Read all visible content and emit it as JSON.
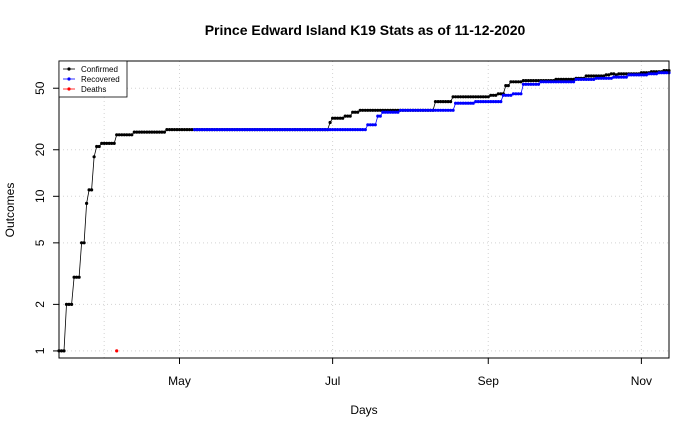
{
  "chart_data": {
    "type": "line",
    "title": "Prince Edward Island K19 Stats as of 11-12-2020",
    "xlabel": "Days",
    "ylabel": "Outcomes",
    "yscale": "log",
    "ylim": [
      0.9,
      75
    ],
    "xlim": [
      "2020-03-14",
      "2020-11-12"
    ],
    "grid": true,
    "legend_position": "top-left",
    "x_ticks": [
      {
        "label": "May",
        "date": "2020-05-01"
      },
      {
        "label": "Jul",
        "date": "2020-07-01"
      },
      {
        "label": "Sep",
        "date": "2020-09-01"
      },
      {
        "label": "Nov",
        "date": "2020-11-01"
      }
    ],
    "y_ticks": [
      1,
      2,
      5,
      10,
      20,
      50
    ],
    "series": [
      {
        "name": "Confirmed",
        "color": "#000000",
        "start": "2020-03-14",
        "end": "2020-11-12",
        "steps": [
          [
            "2020-03-14",
            1
          ],
          [
            "2020-03-17",
            2
          ],
          [
            "2020-03-20",
            3
          ],
          [
            "2020-03-23",
            5
          ],
          [
            "2020-03-25",
            9
          ],
          [
            "2020-03-26",
            11
          ],
          [
            "2020-03-28",
            18
          ],
          [
            "2020-03-29",
            21
          ],
          [
            "2020-03-31",
            22
          ],
          [
            "2020-04-06",
            25
          ],
          [
            "2020-04-13",
            26
          ],
          [
            "2020-04-26",
            27
          ],
          [
            "2020-06-30",
            30
          ],
          [
            "2020-07-01",
            32
          ],
          [
            "2020-07-06",
            33
          ],
          [
            "2020-07-09",
            35
          ],
          [
            "2020-07-12",
            36
          ],
          [
            "2020-08-11",
            41
          ],
          [
            "2020-08-18",
            44
          ],
          [
            "2020-09-02",
            45
          ],
          [
            "2020-09-05",
            46
          ],
          [
            "2020-09-08",
            52
          ],
          [
            "2020-09-10",
            55
          ],
          [
            "2020-09-15",
            56
          ],
          [
            "2020-09-28",
            57
          ],
          [
            "2020-10-06",
            58
          ],
          [
            "2020-10-10",
            60
          ],
          [
            "2020-10-18",
            61
          ],
          [
            "2020-10-20",
            62
          ],
          [
            "2020-10-22",
            61
          ],
          [
            "2020-10-23",
            62
          ],
          [
            "2020-11-01",
            63
          ],
          [
            "2020-11-05",
            64
          ],
          [
            "2020-11-10",
            65
          ]
        ]
      },
      {
        "name": "Recovered",
        "color": "#0000ff",
        "start": "2020-05-07",
        "end": "2020-11-12",
        "steps": [
          [
            "2020-05-07",
            27
          ],
          [
            "2020-07-15",
            29
          ],
          [
            "2020-07-19",
            33
          ],
          [
            "2020-07-21",
            35
          ],
          [
            "2020-07-28",
            36
          ],
          [
            "2020-08-19",
            40
          ],
          [
            "2020-08-27",
            41
          ],
          [
            "2020-09-07",
            45
          ],
          [
            "2020-09-11",
            46
          ],
          [
            "2020-09-15",
            53
          ],
          [
            "2020-09-22",
            55
          ],
          [
            "2020-10-06",
            57
          ],
          [
            "2020-10-14",
            58
          ],
          [
            "2020-10-21",
            59
          ],
          [
            "2020-10-27",
            61
          ],
          [
            "2020-11-04",
            62
          ],
          [
            "2020-11-08",
            63
          ]
        ]
      },
      {
        "name": "Deaths",
        "color": "#ff0000",
        "start": "2020-04-06",
        "end": "2020-04-06",
        "steps": [
          [
            "2020-04-06",
            1
          ]
        ]
      }
    ]
  }
}
